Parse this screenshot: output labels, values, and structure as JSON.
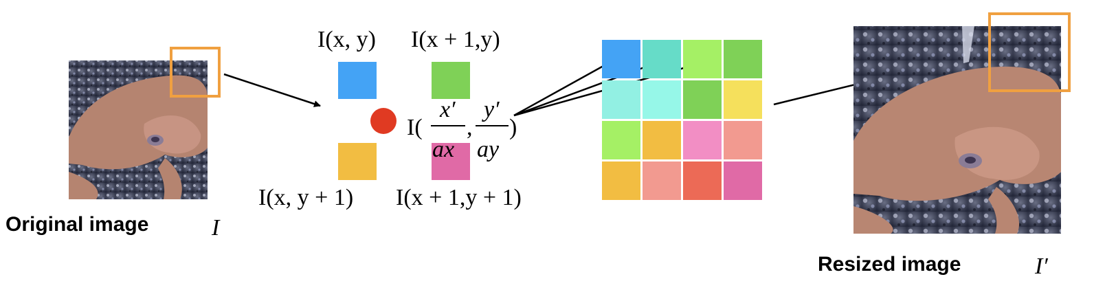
{
  "original": {
    "caption": "Original image",
    "symbol": "I"
  },
  "resized": {
    "caption": "Resized image",
    "symbol": "I′"
  },
  "pixel_labels": {
    "top_left": "I(x, y)",
    "top_right": "I(x + 1,y)",
    "bottom_left": "I(x, y + 1)",
    "bottom_right": "I(x + 1,y + 1)"
  },
  "interp": {
    "prefix": "I(",
    "num_x": "x′",
    "den_x": "ax",
    "comma": ",",
    "num_y": "y′",
    "den_y": "ay",
    "suffix": ")"
  },
  "colors": {
    "highlight": "#f0a040",
    "sample_point": "#e03a22",
    "px_top_left": "#44a3f5",
    "px_top_right": "#7fd157",
    "px_bottom_left": "#f2bd42",
    "px_bottom_right": "#e06aa6"
  },
  "grid_colors": [
    [
      "#44a3f5",
      "#66dcc8",
      "#a5f065",
      "#7fd157"
    ],
    [
      "#92f0e3",
      "#96f7e8",
      "#7fd157",
      "#f5e05c"
    ],
    [
      "#a5f065",
      "#f2bd42",
      "#f28ec4",
      "#f29a90"
    ],
    [
      "#f2bd42",
      "#f29a90",
      "#ec6a56",
      "#e06aa6"
    ]
  ]
}
